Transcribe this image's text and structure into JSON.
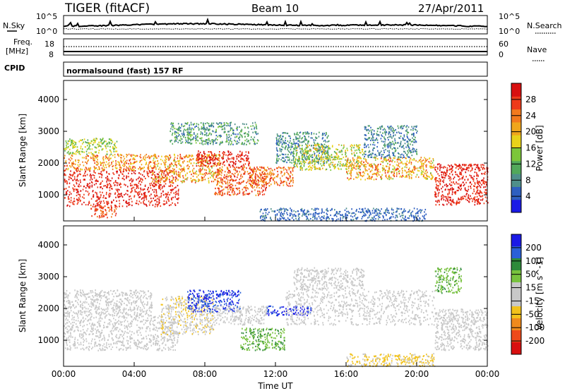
{
  "header": {
    "title": "TIGER (fitACF)",
    "beam": "Beam 10",
    "date": "27/Apr/2011"
  },
  "top_panels": {
    "nsky_label": "N.Sky",
    "nsky_left_ticks": [
      "10^5",
      "10^0"
    ],
    "nsky_right_ticks": [
      "10^5",
      "10^0"
    ],
    "nsearch_label": "N.Search",
    "freq_label_1": "Freq.",
    "freq_label_2": "[MHz]",
    "freq_ticks": [
      "18",
      "8"
    ],
    "nave_ticks": [
      "60",
      "0"
    ],
    "nave_label": "Nave",
    "cpid_label": "CPID",
    "cpid_text": "normalsound (fast) 157 RF"
  },
  "colors": {
    "power": [
      "#1a1ae6",
      "#2e5fc0",
      "#4f8f8a",
      "#52a85a",
      "#7cc63a",
      "#e8d21a",
      "#f0a61c",
      "#f27a1e",
      "#ee3a1a",
      "#d81010"
    ],
    "velocity": [
      "#1a1ae6",
      "#2a60d8",
      "#2e8a3a",
      "#78c23e",
      "#c8c8c8",
      "#c8c8c8",
      "#f2c21c",
      "#f08a1c",
      "#ee4a1a",
      "#d81010"
    ],
    "ground": "#c8c8c8"
  },
  "chart_data": [
    {
      "type": "heatmap",
      "name": "power",
      "xlabel": "",
      "ylabel": "Slant Range [km]",
      "x_ticks": [
        "00:00",
        "04:00",
        "08:00",
        "12:00",
        "16:00",
        "20:00",
        "00:00"
      ],
      "x_range_hours": [
        0,
        24
      ],
      "y_ticks": [
        1000,
        2000,
        3000,
        4000
      ],
      "ylim": [
        180,
        4600
      ],
      "colorbar_label": "Power [dB]",
      "colorbar_ticks": [
        "4",
        "8",
        "12",
        "16",
        "20",
        "24",
        "28"
      ],
      "colorbar_range": [
        0,
        30
      ],
      "bands": [
        {
          "x": [
            0.0,
            6.5
          ],
          "r": [
            650,
            1800
          ],
          "v": [
            24,
            30
          ]
        },
        {
          "x": [
            0.0,
            5.0
          ],
          "r": [
            1800,
            2300
          ],
          "v": [
            16,
            26
          ]
        },
        {
          "x": [
            0.0,
            3.0
          ],
          "r": [
            2300,
            2800
          ],
          "v": [
            10,
            18
          ]
        },
        {
          "x": [
            5.0,
            9.0
          ],
          "r": [
            1400,
            2300
          ],
          "v": [
            14,
            26
          ]
        },
        {
          "x": [
            7.5,
            10.5
          ],
          "r": [
            1900,
            2400
          ],
          "v": [
            24,
            30
          ]
        },
        {
          "x": [
            8.5,
            11.5
          ],
          "r": [
            1000,
            1900
          ],
          "v": [
            20,
            28
          ]
        },
        {
          "x": [
            6.0,
            11.0
          ],
          "r": [
            2600,
            3300
          ],
          "v": [
            4,
            14
          ]
        },
        {
          "x": [
            10.5,
            13.0
          ],
          "r": [
            1300,
            1900
          ],
          "v": [
            18,
            28
          ]
        },
        {
          "x": [
            12.0,
            15.0
          ],
          "r": [
            2000,
            3000
          ],
          "v": [
            4,
            12
          ]
        },
        {
          "x": [
            13.0,
            17.0
          ],
          "r": [
            1800,
            2600
          ],
          "v": [
            10,
            20
          ]
        },
        {
          "x": [
            16.0,
            21.0
          ],
          "r": [
            1500,
            2200
          ],
          "v": [
            14,
            26
          ]
        },
        {
          "x": [
            17.0,
            20.0
          ],
          "r": [
            2200,
            3200
          ],
          "v": [
            4,
            10
          ]
        },
        {
          "x": [
            21.0,
            24.0
          ],
          "r": [
            700,
            2000
          ],
          "v": [
            24,
            30
          ]
        },
        {
          "x": [
            11.0,
            20.5
          ],
          "r": [
            200,
            600
          ],
          "v": [
            3,
            7
          ]
        },
        {
          "x": [
            1.5,
            3.0
          ],
          "r": [
            300,
            700
          ],
          "v": [
            22,
            28
          ]
        }
      ]
    },
    {
      "type": "heatmap",
      "name": "velocity",
      "xlabel": "Time UT",
      "ylabel": "Slant Range [km]",
      "x_ticks": [
        "00:00",
        "04:00",
        "08:00",
        "12:00",
        "16:00",
        "20:00",
        "00:00"
      ],
      "x_range_hours": [
        0,
        24
      ],
      "y_ticks": [
        1000,
        2000,
        3000,
        4000
      ],
      "ylim": [
        180,
        4600
      ],
      "colorbar_label": "Velocity [m s^-1]",
      "colorbar_ticks": [
        "200",
        "100",
        "50",
        "15",
        "-15",
        "-50",
        "-100",
        "-200"
      ],
      "colorbar_range": [
        250,
        -250
      ],
      "bands": [
        {
          "x": [
            0.0,
            6.5
          ],
          "r": [
            700,
            1800
          ],
          "v": [
            -5,
            5
          ]
        },
        {
          "x": [
            0.0,
            5.0
          ],
          "r": [
            1800,
            2600
          ],
          "v": [
            -30,
            10
          ]
        },
        {
          "x": [
            5.5,
            8.5
          ],
          "r": [
            1200,
            2400
          ],
          "v": [
            -60,
            -20
          ]
        },
        {
          "x": [
            7.0,
            10.0
          ],
          "r": [
            1900,
            2600
          ],
          "v": [
            150,
            250
          ]
        },
        {
          "x": [
            8.5,
            11.5
          ],
          "r": [
            1500,
            2100
          ],
          "v": [
            -5,
            5
          ]
        },
        {
          "x": [
            10.0,
            12.5
          ],
          "r": [
            700,
            1400
          ],
          "v": [
            30,
            60
          ]
        },
        {
          "x": [
            11.5,
            14.0
          ],
          "r": [
            1800,
            2100
          ],
          "v": [
            180,
            250
          ]
        },
        {
          "x": [
            12.5,
            21.0
          ],
          "r": [
            1500,
            2600
          ],
          "v": [
            -5,
            5
          ]
        },
        {
          "x": [
            13.0,
            17.0
          ],
          "r": [
            2600,
            3300
          ],
          "v": [
            -10,
            10
          ]
        },
        {
          "x": [
            21.0,
            24.0
          ],
          "r": [
            700,
            2000
          ],
          "v": [
            -5,
            5
          ]
        },
        {
          "x": [
            16.0,
            21.0
          ],
          "r": [
            200,
            600
          ],
          "v": [
            -80,
            -40
          ]
        },
        {
          "x": [
            21.0,
            22.5
          ],
          "r": [
            2500,
            3300
          ],
          "v": [
            20,
            60
          ]
        }
      ]
    }
  ]
}
